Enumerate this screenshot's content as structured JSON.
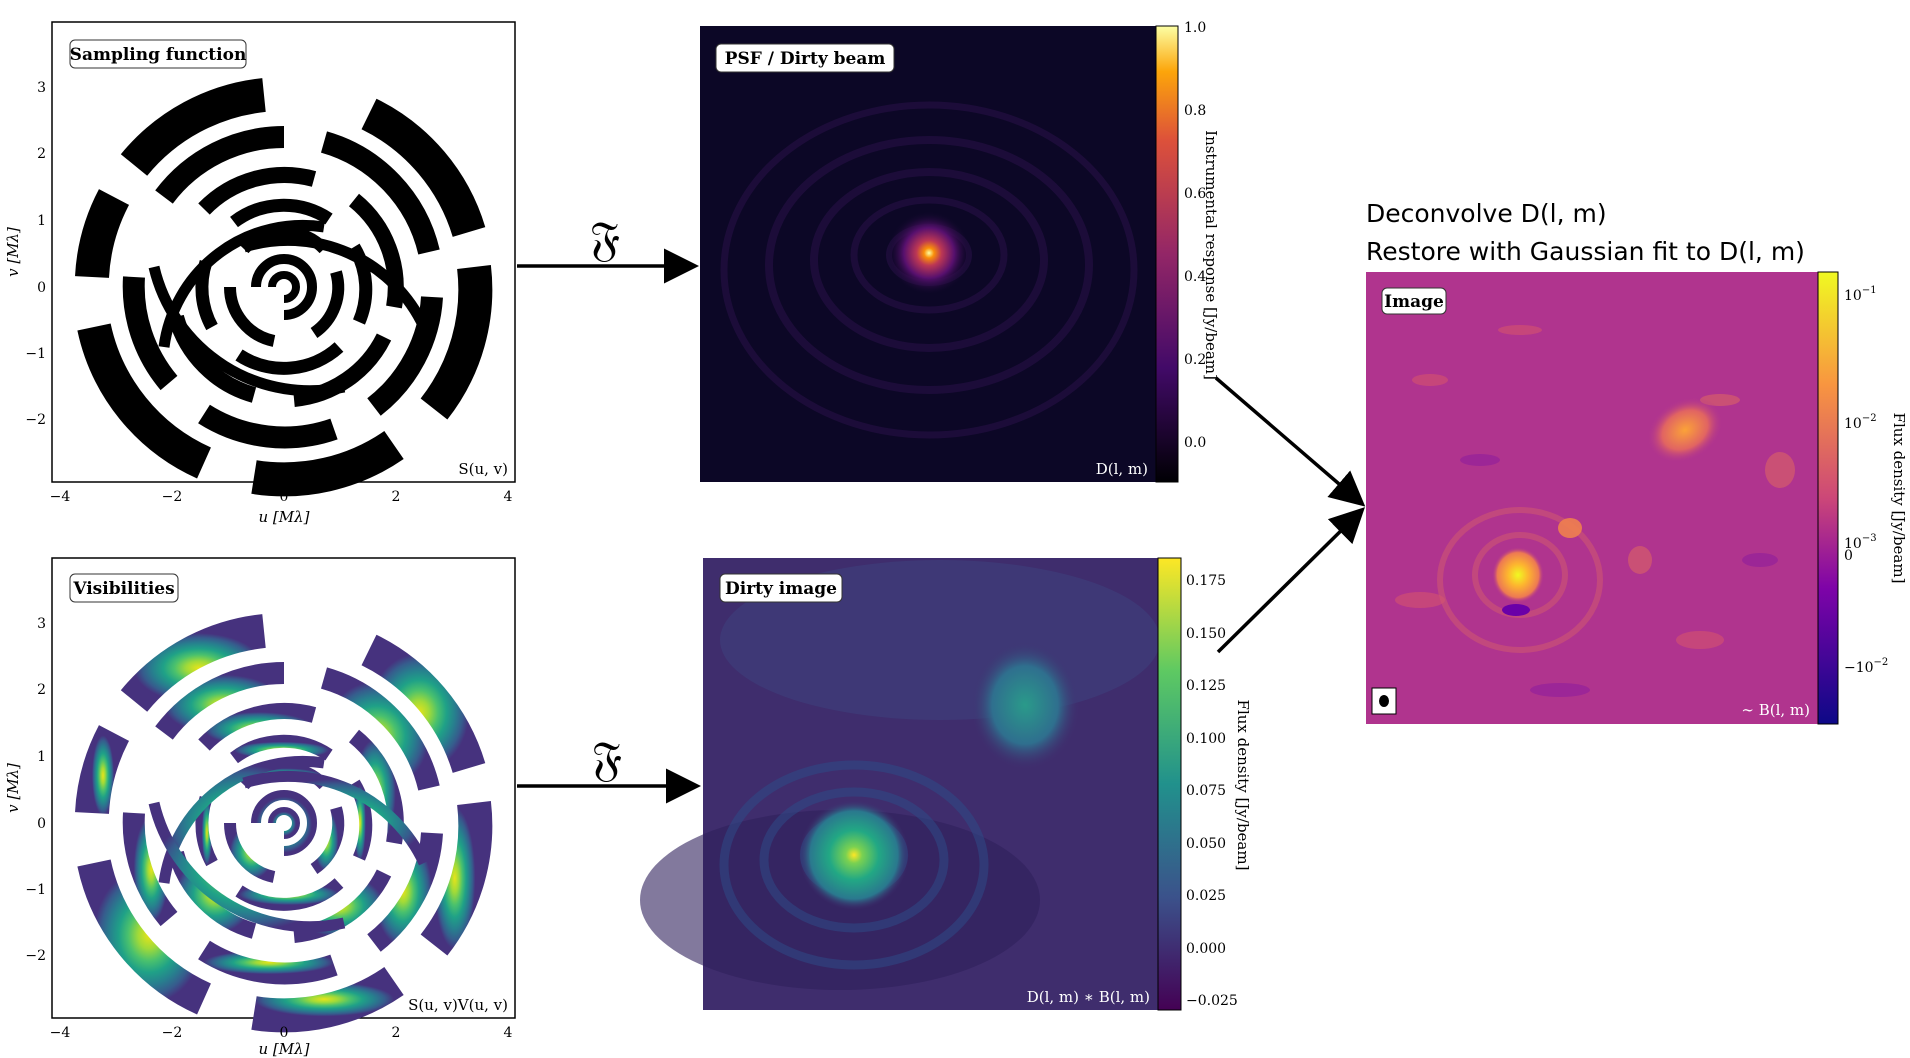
{
  "panels": {
    "sampling": {
      "label": "Sampling function",
      "corner": "S(u, v)",
      "xlabel": "u [Mλ]",
      "ylabel": "v [Mλ]",
      "xticks": [
        "−4",
        "−2",
        "0",
        "2",
        "4"
      ],
      "yticks": [
        "3",
        "2",
        "1",
        "0",
        "−1",
        "−2"
      ]
    },
    "visibilities": {
      "label": "Visibilities",
      "corner": "S(u, v)V(u, v)",
      "xlabel": "u [Mλ]",
      "ylabel": "v [Mλ]",
      "xticks": [
        "−4",
        "−2",
        "0",
        "2",
        "4"
      ],
      "yticks": [
        "3",
        "2",
        "1",
        "0",
        "−1",
        "−2"
      ]
    },
    "psf": {
      "label": "PSF / Dirty beam",
      "corner": "D(l, m)",
      "colorbar_label": "Instrumental response [Jy/beam]",
      "colorbar_ticks": [
        "1.0",
        "0.8",
        "0.6",
        "0.4",
        "0.2",
        "0.0"
      ]
    },
    "dirty": {
      "label": "Dirty image",
      "corner": "D(l, m) ∗ B(l, m)",
      "colorbar_label": "Flux density [Jy/beam]",
      "colorbar_ticks": [
        "0.175",
        "0.150",
        "0.125",
        "0.100",
        "0.075",
        "0.050",
        "0.025",
        "0.000",
        "−0.025"
      ]
    },
    "image": {
      "label": "Image",
      "corner": "∼ B(l, m)",
      "colorbar_label": "Flux density [Jy/beam]",
      "colorbar_ticks_top": [
        "10",
        "10",
        "10"
      ],
      "colorbar_exponents_top": [
        "−1",
        "−2",
        "−3"
      ],
      "colorbar_tick_zero": "0",
      "colorbar_tick_neg": "−10",
      "colorbar_exponent_neg": "−2"
    }
  },
  "arrows": {
    "fourier_symbol": "𝔉"
  },
  "steps": {
    "line1": "Deconvolve D(l, m)",
    "line2": "Restore with Gaussian fit to D(l, m)"
  },
  "colors": {
    "inferno_bg": "#0c0726",
    "viridis_bg": "#3f2d6d",
    "plasma_bg": "#b0348e"
  }
}
